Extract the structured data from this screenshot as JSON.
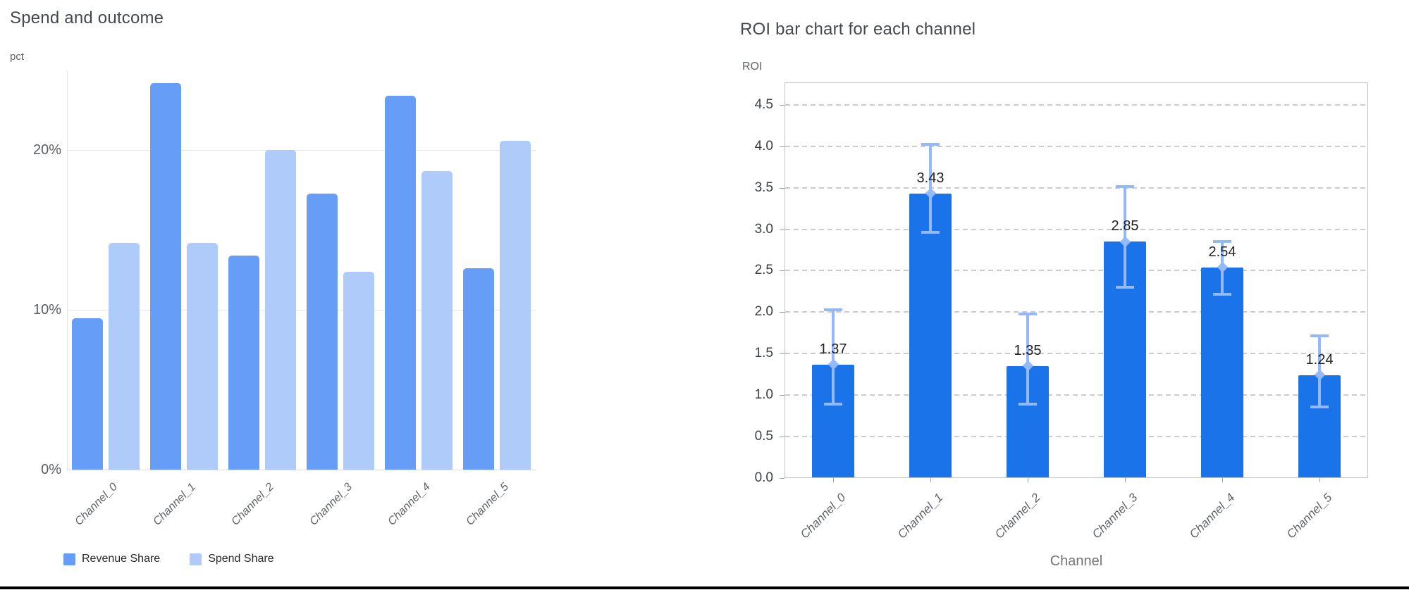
{
  "page": {
    "bottom_divider_color": "#000000"
  },
  "chart_data": [
    {
      "type": "bar",
      "title": "Spend and outcome",
      "ylabel": "pct",
      "xlabel": "",
      "categories": [
        "Channel_0",
        "Channel_1",
        "Channel_2",
        "Channel_3",
        "Channel_4",
        "Channel_5"
      ],
      "series": [
        {
          "name": "Revenue Share",
          "color": "#669df6",
          "values": [
            9.5,
            24.2,
            13.4,
            17.3,
            23.4,
            12.6
          ]
        },
        {
          "name": "Spend Share",
          "color": "#aecbfa",
          "values": [
            14.2,
            14.2,
            20.0,
            12.4,
            18.7,
            20.6
          ]
        }
      ],
      "y_ticks": [
        {
          "value": 0,
          "label": "0%"
        },
        {
          "value": 10,
          "label": "10%"
        },
        {
          "value": 20,
          "label": "20%"
        }
      ],
      "ylim": [
        0,
        25
      ],
      "grid": "solid",
      "legend_position": "bottom-left"
    },
    {
      "type": "bar",
      "title": "ROI bar chart for each channel",
      "ylabel": "ROI",
      "xlabel": "Channel",
      "categories": [
        "Channel_0",
        "Channel_1",
        "Channel_2",
        "Channel_3",
        "Channel_4",
        "Channel_5"
      ],
      "values": [
        1.37,
        3.43,
        1.35,
        2.85,
        2.54,
        1.24
      ],
      "data_labels": [
        "1.37",
        "3.43",
        "1.35",
        "2.85",
        "2.54",
        "1.24"
      ],
      "error_low": [
        0.88,
        2.95,
        0.88,
        2.29,
        2.21,
        0.85
      ],
      "error_high": [
        2.04,
        4.03,
        1.99,
        3.52,
        2.86,
        1.72
      ],
      "bar_color": "#1a73e8",
      "error_bar_color": "#93b9f8",
      "ylim": [
        0,
        4.77
      ],
      "y_tick_labels": [
        "0.0",
        "0.5",
        "1.0",
        "1.5",
        "2.0",
        "2.5",
        "3.0",
        "3.5",
        "4.0",
        "4.5"
      ],
      "y_tick_step": 0.5,
      "grid": "dashed",
      "legend_position": "none"
    }
  ]
}
